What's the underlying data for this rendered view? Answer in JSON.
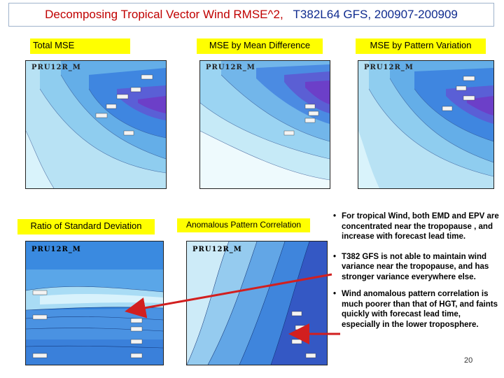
{
  "slide": {
    "title_part1": "Decomposing Tropical Vector Wind RMSE^2,",
    "title_part2": "T382L64 GFS, 200907-200909",
    "page_number": "20",
    "accent_color": "#ffff00",
    "title_color": "#c00000",
    "arrow_color": "#d21f1f"
  },
  "panels": {
    "total_mse": {
      "label": "Total MSE",
      "model": "PRU12R_M"
    },
    "mean_difference": {
      "label": "MSE by Mean Difference",
      "model": "PRU12R_M"
    },
    "pattern_variation": {
      "label": "MSE by Pattern Variation",
      "model": "PRU12R_M"
    },
    "std_ratio": {
      "label": "Ratio of Standard Deviation",
      "model": "PRU12R_M"
    },
    "pattern_correlation": {
      "label": "Anomalous Pattern Correlation",
      "model": "PRU12R_M"
    }
  },
  "bullets": [
    "For tropical Wind, both EMD and EPV are concentrated near the tropopause , and increase with forecast lead time.",
    "T382 GFS is not able to maintain wind variance near the tropopause, and has stronger variance everywhere else.",
    "Wind anomalous pattern correlation is much poorer than that of HGT, and faints quickly with forecast lead time, especially in the lower troposphere."
  ]
}
